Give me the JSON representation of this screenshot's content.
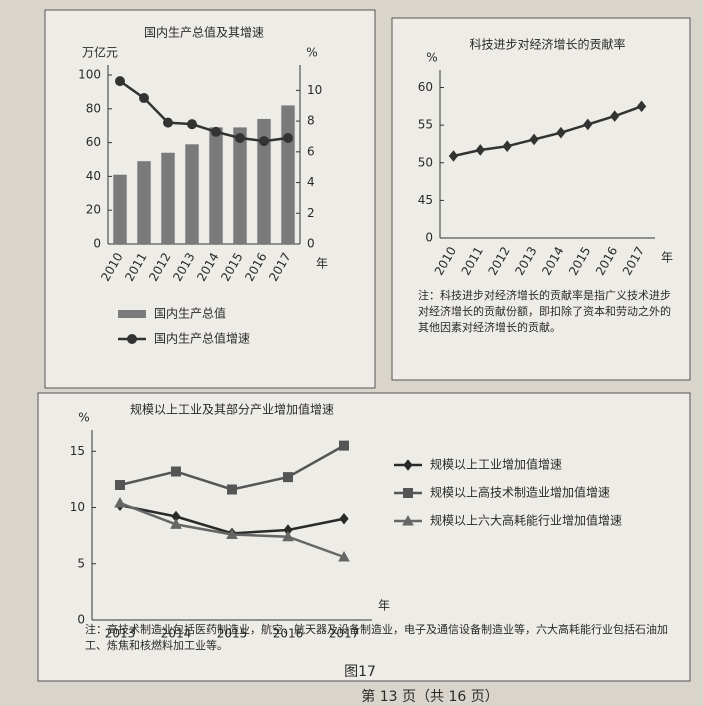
{
  "chart_data": [
    {
      "type": "combo",
      "title": "国内生产总值及其增速",
      "ylabel": "万亿元",
      "y2label": "%",
      "x_unit": "年",
      "categories": [
        "2010",
        "2011",
        "2012",
        "2013",
        "2014",
        "2015",
        "2016",
        "2017"
      ],
      "series": [
        {
          "name": "国内生产总值",
          "type": "bar",
          "color": "#7a7a7a",
          "values": [
            41,
            49,
            54,
            59,
            69,
            69,
            74,
            82
          ]
        },
        {
          "name": "国内生产总值增速",
          "type": "line",
          "axis": "y2",
          "marker": "circle",
          "color": "#333333",
          "values": [
            10.6,
            9.5,
            7.9,
            7.8,
            7.3,
            6.9,
            6.7,
            6.9
          ]
        }
      ],
      "ylim": [
        0,
        100
      ],
      "yticks": [
        0,
        20,
        40,
        60,
        80,
        100
      ],
      "y2lim": [
        0,
        11
      ],
      "y2ticks": [
        0,
        2,
        4,
        6,
        8,
        10
      ],
      "legend": "bottom"
    },
    {
      "type": "line",
      "title": "科技进步对经济增长的贡献率",
      "ylabel": "%",
      "x_unit": "年",
      "categories": [
        "2010",
        "2011",
        "2012",
        "2013",
        "2014",
        "2015",
        "2016",
        "2017"
      ],
      "series": [
        {
          "type": "line",
          "marker": "diamond",
          "color": "#333333",
          "values": [
            50.9,
            51.7,
            52.2,
            53.1,
            54.0,
            55.1,
            56.2,
            57.5
          ]
        }
      ],
      "ylim": [
        40,
        61
      ],
      "yticks": [
        {
          "value": 40,
          "label": "0"
        },
        45,
        50,
        55,
        60
      ],
      "note": "注：科技进步对经济增长的贡献率是指广义技术进步对经济增长的贡献份额，即扣除了资本和劳动之外的其他因素对经济增长的贡献。"
    },
    {
      "type": "line",
      "title": "规模以上工业及其部分产业增加值增速",
      "ylabel": "%",
      "x_unit": "年",
      "categories": [
        "2013",
        "2014",
        "2015",
        "2016",
        "2017"
      ],
      "series": [
        {
          "name": "规模以上工业增加值增速",
          "type": "line",
          "marker": "diamond",
          "color": "#2a2a2a",
          "values": [
            10.2,
            9.2,
            7.7,
            8.0,
            9.0
          ]
        },
        {
          "name": "规模以上高技术制造业增加值增速",
          "type": "line",
          "marker": "square",
          "color": "#555555",
          "values": [
            12.0,
            13.2,
            11.6,
            12.7,
            15.5
          ]
        },
        {
          "name": "规模以上六大高耗能行业增加值增速",
          "type": "line",
          "marker": "triangle",
          "color": "#666666",
          "values": [
            10.4,
            8.5,
            7.6,
            7.4,
            5.6
          ]
        }
      ],
      "ylim": [
        0,
        16
      ],
      "yticks": [
        0,
        5,
        10,
        15
      ],
      "legend": "right",
      "note": "注：高技术制造业包括医药制造业，航空、航天器及设备制造业，电子及通信设备制造业等，六大高耗能行业包括石油加工、炼焦和核燃料加工业等。"
    }
  ],
  "figure_caption": "图17",
  "footer": "第 13 页（共 16 页）"
}
